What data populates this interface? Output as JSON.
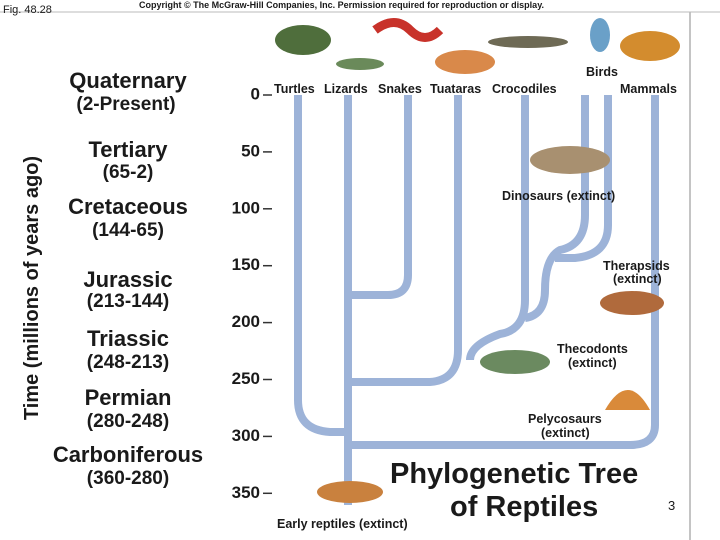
{
  "header": {
    "figure": "Fig. 48.28",
    "copyright": "Copyright © The McGraw-Hill Companies, Inc. Permission required for reproduction or display."
  },
  "axis": {
    "label": "Time (millions of years ago)",
    "ticks": [
      0,
      50,
      100,
      150,
      200,
      250,
      300,
      350
    ]
  },
  "periods": [
    {
      "name": "Quaternary",
      "range": "(2-Present)"
    },
    {
      "name": "Tertiary",
      "range": "(65-2)"
    },
    {
      "name": "Cretaceous",
      "range": "(144-65)"
    },
    {
      "name": "Jurassic",
      "range": "(213-144)"
    },
    {
      "name": "Triassic",
      "range": "(248-213)"
    },
    {
      "name": "Permian",
      "range": "(280-248)"
    },
    {
      "name": "Carboniferous",
      "range": "(360-280)"
    }
  ],
  "taxa": [
    "Turtles",
    "Lizards",
    "Snakes",
    "Tuataras",
    "Crocodiles",
    "Birds",
    "Mammals"
  ],
  "extinct": {
    "dinosaurs": "Dinosaurs (extinct)",
    "therapsids": [
      "Therapsids",
      "(extinct)"
    ],
    "thecodonts": [
      "Thecodonts",
      "(extinct)"
    ],
    "pelycosaurs": [
      "Pelycosaurs",
      "(extinct)"
    ],
    "early": "Early reptiles (extinct)"
  },
  "title": [
    "Phylogenetic Tree",
    "of Reptiles"
  ],
  "page_number": "3"
}
